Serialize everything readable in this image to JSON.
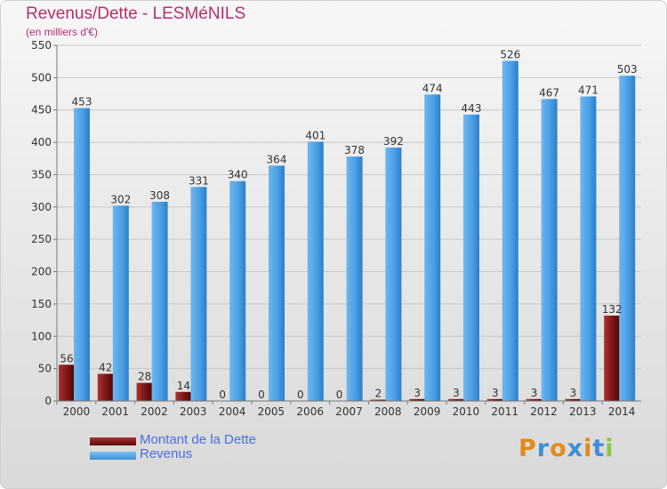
{
  "title": "Revenus/Dette - LESMéNILS",
  "subtitle": "(en milliers d'€)",
  "logo": "Proxiti",
  "colors": {
    "title": "#b5306a",
    "dette": "#7a1414",
    "revenus": "#4a9fe6",
    "legend_text": "#4a6fe0",
    "logo_letters": [
      "#e38a1c",
      "#3f8fd6",
      "#e38a1c",
      "#3f8fd6",
      "#e38a1c",
      "#3f8fd6",
      "#8cc63f"
    ]
  },
  "chart_data": {
    "type": "bar",
    "categories": [
      "2000",
      "2001",
      "2002",
      "2003",
      "2004",
      "2005",
      "2006",
      "2007",
      "2008",
      "2009",
      "2010",
      "2011",
      "2012",
      "2013",
      "2014"
    ],
    "series": [
      {
        "name": "Montant de la Dette",
        "values": [
          56,
          42,
          28,
          14,
          0,
          0,
          0,
          0,
          2,
          3,
          3,
          3,
          3,
          3,
          132
        ]
      },
      {
        "name": "Revenus",
        "values": [
          453,
          302,
          308,
          331,
          340,
          364,
          401,
          378,
          392,
          474,
          443,
          526,
          467,
          471,
          503
        ]
      }
    ],
    "ylim": [
      0,
      550
    ],
    "yticks": [
      0,
      50,
      100,
      150,
      200,
      250,
      300,
      350,
      400,
      450,
      500,
      550
    ],
    "grid": true,
    "legend": "bottom-left"
  }
}
